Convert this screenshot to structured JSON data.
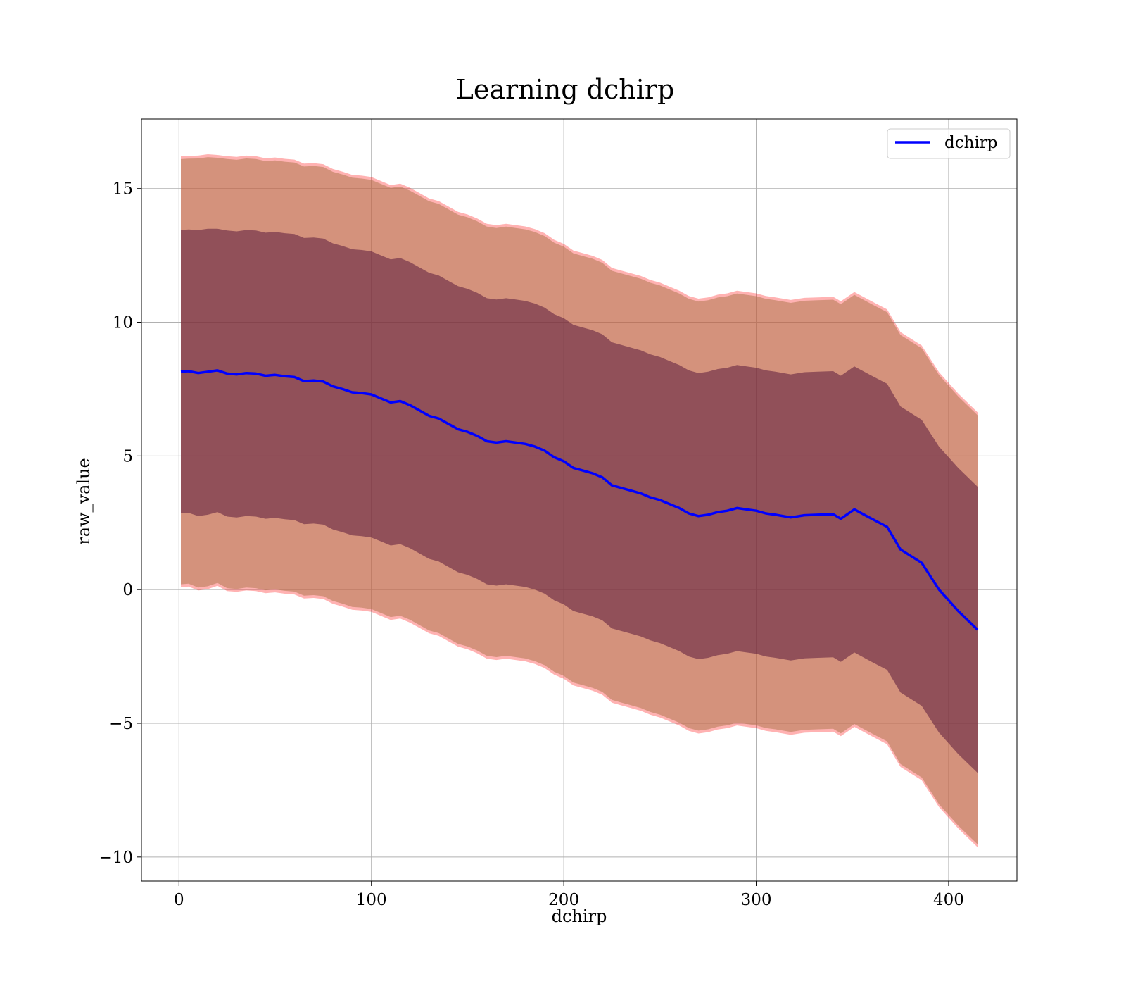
{
  "chart_data": {
    "type": "line",
    "title": "Learning dchirp",
    "xlabel": "dchirp",
    "ylabel": "raw_value",
    "xlim": [
      -19.5,
      435.5
    ],
    "ylim": [
      -10.9,
      17.6
    ],
    "xticks": [
      0,
      100,
      200,
      300,
      400
    ],
    "yticks": [
      -10,
      -5,
      0,
      5,
      10,
      15
    ],
    "xtick_labels": [
      "0",
      "100",
      "200",
      "300",
      "400"
    ],
    "ytick_labels": [
      "−10",
      "−5",
      "0",
      "5",
      "10",
      "15"
    ],
    "grid": true,
    "legend_position": "top-right",
    "series": [
      {
        "name": "dchirp",
        "color": "#0000ff",
        "x": [
          1,
          5,
          10,
          15,
          20,
          25,
          30,
          35,
          40,
          45,
          50,
          55,
          60,
          65,
          70,
          75,
          80,
          85,
          90,
          95,
          100,
          105,
          110,
          115,
          120,
          125,
          130,
          135,
          140,
          145,
          150,
          155,
          160,
          165,
          170,
          175,
          180,
          185,
          190,
          195,
          200,
          205,
          210,
          215,
          220,
          225,
          230,
          235,
          240,
          245,
          250,
          255,
          260,
          265,
          270,
          275,
          280,
          285,
          290,
          295,
          300,
          305,
          310,
          318,
          325,
          332,
          340,
          344,
          351,
          360,
          368,
          375,
          386,
          395,
          405,
          415
        ],
        "y": [
          8.15,
          8.17,
          8.1,
          8.15,
          8.2,
          8.08,
          8.05,
          8.1,
          8.08,
          8.0,
          8.03,
          7.98,
          7.95,
          7.8,
          7.82,
          7.78,
          7.6,
          7.5,
          7.38,
          7.35,
          7.3,
          7.15,
          7.0,
          7.05,
          6.9,
          6.7,
          6.5,
          6.4,
          6.2,
          6.0,
          5.9,
          5.75,
          5.55,
          5.5,
          5.55,
          5.5,
          5.45,
          5.35,
          5.2,
          4.95,
          4.8,
          4.55,
          4.45,
          4.35,
          4.2,
          3.9,
          3.8,
          3.7,
          3.6,
          3.45,
          3.35,
          3.2,
          3.05,
          2.85,
          2.75,
          2.8,
          2.9,
          2.95,
          3.05,
          3.0,
          2.95,
          2.85,
          2.8,
          2.7,
          2.78,
          2.8,
          2.82,
          2.65,
          3.0,
          2.65,
          2.35,
          1.5,
          1.0,
          0.0,
          -0.8,
          -1.5
        ],
        "std": [
          5.3,
          5.3,
          5.35,
          5.35,
          5.3,
          5.35,
          5.35,
          5.35,
          5.35,
          5.35,
          5.35,
          5.35,
          5.35,
          5.35,
          5.35,
          5.35,
          5.35,
          5.35,
          5.35,
          5.35,
          5.35,
          5.35,
          5.35,
          5.35,
          5.35,
          5.35,
          5.35,
          5.35,
          5.35,
          5.35,
          5.35,
          5.35,
          5.35,
          5.35,
          5.35,
          5.35,
          5.35,
          5.35,
          5.35,
          5.35,
          5.35,
          5.35,
          5.35,
          5.35,
          5.35,
          5.35,
          5.35,
          5.35,
          5.35,
          5.35,
          5.35,
          5.35,
          5.35,
          5.35,
          5.35,
          5.35,
          5.35,
          5.35,
          5.35,
          5.35,
          5.35,
          5.35,
          5.35,
          5.35,
          5.35,
          5.35,
          5.35,
          5.35,
          5.35,
          5.35,
          5.35,
          5.35,
          5.35,
          5.35,
          5.35,
          5.35
        ]
      }
    ],
    "bands": [
      {
        "sigma": 1.0,
        "color": "#5a1a3c",
        "opacity": 0.55
      },
      {
        "sigma": 1.5,
        "color": "#b07850",
        "opacity": 0.55
      },
      {
        "sigma": 1.52,
        "color": "#ff0000",
        "opacity": 0.3
      }
    ]
  }
}
